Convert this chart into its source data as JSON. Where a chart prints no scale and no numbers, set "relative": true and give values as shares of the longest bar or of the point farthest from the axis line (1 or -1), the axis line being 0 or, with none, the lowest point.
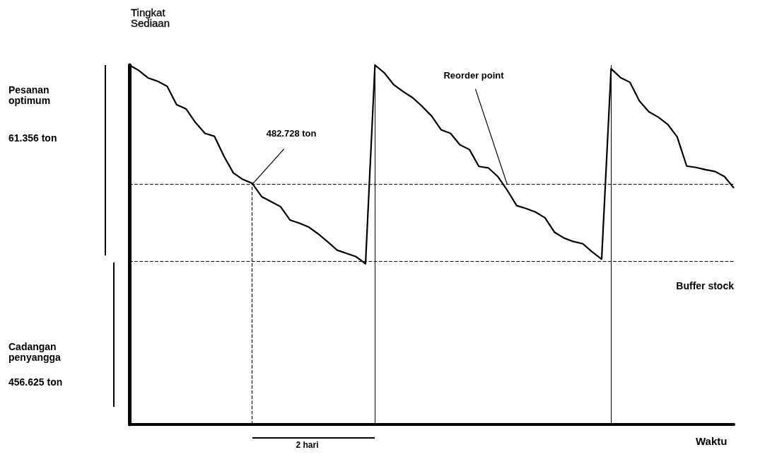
{
  "chart_data": {
    "type": "line",
    "relative": true,
    "xlabel": "Waktu",
    "ylabel": "Tingkat Sediaan",
    "marker": "none",
    "line_style": "solid",
    "categories": [
      null,
      null,
      null,
      null,
      null,
      null,
      null,
      null,
      null,
      null,
      null,
      null,
      null,
      null,
      null,
      null,
      null,
      null,
      null,
      null,
      null,
      null,
      null,
      null,
      null,
      null,
      null,
      null,
      null,
      null,
      null,
      null,
      null,
      null,
      null,
      null,
      null,
      null,
      null,
      null,
      null,
      null,
      null,
      null,
      null,
      null,
      null,
      null,
      null,
      null,
      null,
      null,
      null,
      null,
      null,
      null,
      null,
      null,
      null,
      null,
      null,
      null,
      null,
      null,
      null
    ],
    "series": [
      {
        "color": "#000000",
        "values": [
          1,
          0.985,
          0.964,
          0.955,
          0.941,
          0.89,
          0.878,
          0.84,
          0.81,
          0.802,
          0.747,
          0.7,
          0.682,
          0.671,
          0.634,
          0.62,
          0.606,
          0.569,
          0.56,
          0.549,
          0.53,
          0.508,
          0.485,
          0.476,
          0.467,
          0.447,
          1,
          0.978,
          0.945,
          0.926,
          0.909,
          0.885,
          0.858,
          0.82,
          0.81,
          0.778,
          0.765,
          0.718,
          0.714,
          0.69,
          0.652,
          0.609,
          0.601,
          0.591,
          0.575,
          0.535,
          0.519,
          0.509,
          0.503,
          0.48,
          0.46,
          0.99,
          0.965,
          0.952,
          0.9,
          0.87,
          0.855,
          0.835,
          0.8,
          0.719,
          0.715,
          0.709,
          0.704,
          0.69,
          0.658
        ]
      }
    ],
    "ref_lines": [
      {
        "axis": "y",
        "value": 0.668,
        "line_style": "dashed"
      },
      {
        "axis": "y",
        "value": 0.455,
        "label": "Buffer stock",
        "line_style": "dashed"
      }
    ],
    "annotations": [
      "Pesanan optimum",
      "61.356 ton",
      "Cadangan penyangga",
      "456.625 ton",
      "482.728 ton",
      "Reorder point",
      "2 hari"
    ]
  }
}
